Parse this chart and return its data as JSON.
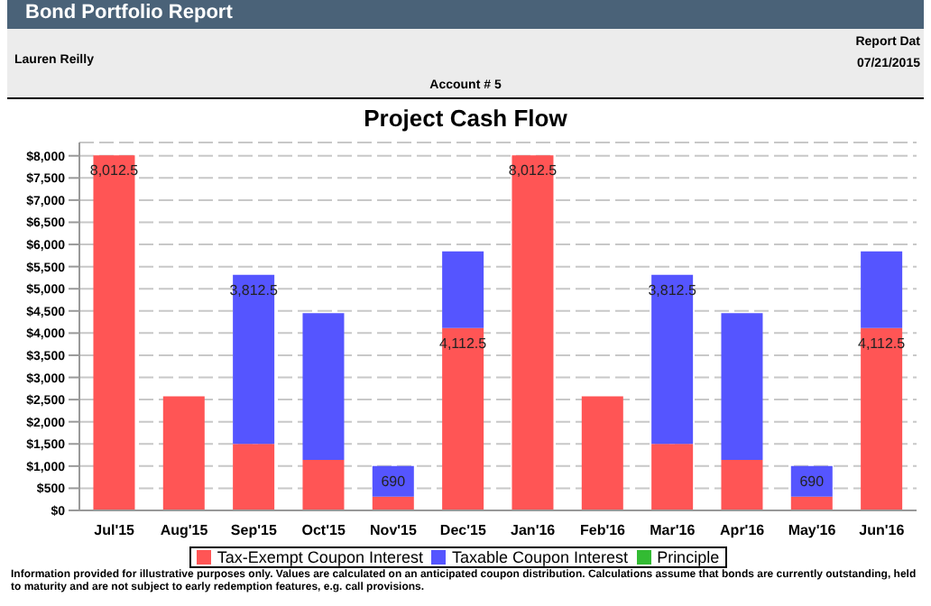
{
  "chart_data": {
    "type": "bar",
    "title": "Project Cash Flow",
    "annotations": [
      "Bond Portfolio Report",
      "Lauren Reilly",
      "Report Dat",
      "07/21/2015",
      "Account # 5",
      "Information provided for illustrative purposes only. Values are calculated on an anticipated coupon distribution. Calculations assume that bonds are currently outstanding, held to maturity and are not subject to early redemption features, e.g. call provisions."
    ],
    "categories": [
      "Jul'15",
      "Aug'15",
      "Sep'15",
      "Oct'15",
      "Nov'15",
      "Dec'15",
      "Jan'16",
      "Feb'16",
      "Mar'16",
      "Apr'16",
      "May'16",
      "Jun'16"
    ],
    "series": [
      {
        "name": "Tax-Exempt Coupon Interest",
        "color": "#ff5555",
        "values": [
          8012.5,
          2575,
          1500,
          1140,
          310,
          4112.5,
          8012.5,
          2575,
          1500,
          1140,
          310,
          4112.5
        ],
        "value_labels": [
          "8,012.5",
          null,
          null,
          null,
          null,
          "4,112.5",
          "8,012.5",
          null,
          null,
          null,
          null,
          "4,112.5"
        ]
      },
      {
        "name": "Taxable Coupon Interest",
        "color": "#5555ff",
        "values": [
          0,
          0,
          3812.5,
          3310,
          690,
          1730,
          0,
          0,
          3812.5,
          3310,
          690,
          1730
        ],
        "value_labels": [
          null,
          null,
          "3,812.5",
          null,
          "690",
          null,
          null,
          null,
          "3,812.5",
          null,
          "690",
          null
        ]
      },
      {
        "name": "Principle",
        "color": "#33bb33",
        "values": [
          0,
          0,
          0,
          0,
          0,
          0,
          0,
          0,
          0,
          0,
          0,
          0
        ]
      }
    ],
    "stacked": true,
    "ylim": [
      0,
      8300
    ],
    "yticks": [
      {
        "value": 0,
        "label": "$0"
      },
      {
        "value": 500,
        "label": "$500"
      },
      {
        "value": 1000,
        "label": "$1,000"
      },
      {
        "value": 1500,
        "label": "$1,500"
      },
      {
        "value": 2000,
        "label": "$2,000"
      },
      {
        "value": 2500,
        "label": "$2,500"
      },
      {
        "value": 3000,
        "label": "$3,000"
      },
      {
        "value": 3500,
        "label": "$3,500"
      },
      {
        "value": 4000,
        "label": "$4,000"
      },
      {
        "value": 4500,
        "label": "$4,500"
      },
      {
        "value": 5000,
        "label": "$5,000"
      },
      {
        "value": 5500,
        "label": "$5,500"
      },
      {
        "value": 6000,
        "label": "$6,000"
      },
      {
        "value": 6500,
        "label": "$6,500"
      },
      {
        "value": 7000,
        "label": "$7,000"
      },
      {
        "value": 7500,
        "label": "$7,500"
      },
      {
        "value": 8000,
        "label": "$8,000"
      }
    ],
    "grid": "y",
    "legend": "bottom"
  }
}
